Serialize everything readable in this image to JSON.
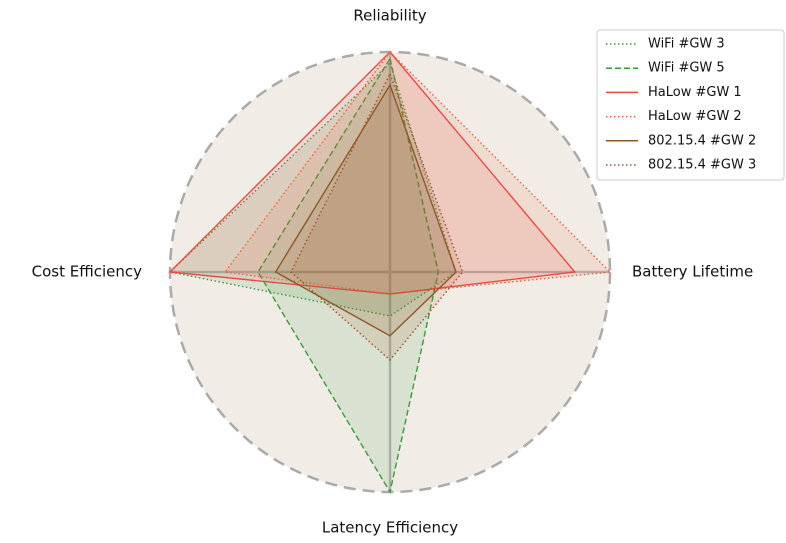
{
  "chart_data": {
    "type": "radar",
    "categories": [
      "Reliability",
      "Battery Lifetime",
      "Latency Efficiency",
      "Cost Efficiency"
    ],
    "ylim": [
      0,
      1
    ],
    "legend": "upper right",
    "series": [
      {
        "name": "WiFi #GW 3",
        "color": "#3a9a3a",
        "linestyle": "dotted",
        "values": [
          0.95,
          0.3,
          0.2,
          1.0
        ]
      },
      {
        "name": "WiFi #GW 5",
        "color": "#3a9a3a",
        "linestyle": "dashed",
        "values": [
          0.97,
          0.22,
          1.0,
          0.6
        ]
      },
      {
        "name": "HaLow #GW 1",
        "color": "#e84a4a",
        "linestyle": "solid",
        "values": [
          1.0,
          0.84,
          0.1,
          1.0
        ]
      },
      {
        "name": "HaLow #GW 2",
        "color": "#e8643c",
        "linestyle": "dotted",
        "values": [
          1.0,
          1.0,
          0.1,
          0.75
        ]
      },
      {
        "name": "802.15.4 #GW 2",
        "color": "#8b5a2b",
        "linestyle": "solid",
        "values": [
          0.85,
          0.3,
          0.29,
          0.52
        ]
      },
      {
        "name": "802.15.4 #GW 3",
        "color": "#a0522d",
        "linestyle": "dotted",
        "values": [
          0.9,
          0.33,
          0.4,
          0.45
        ]
      }
    ]
  }
}
